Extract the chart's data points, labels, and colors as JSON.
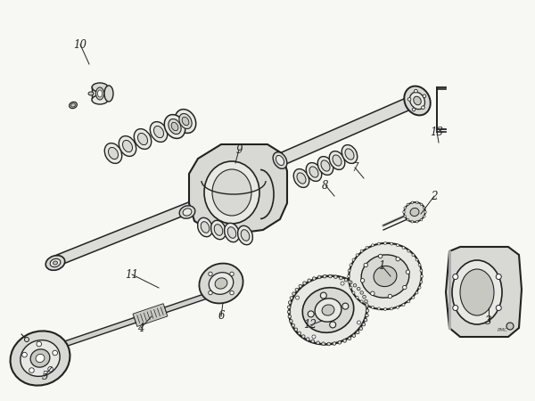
{
  "bg_color": "#f7f7f3",
  "line_color": "#222222",
  "fill_light": "#e8e8e4",
  "fill_mid": "#d8d8d4",
  "fill_dark": "#c8c8c2",
  "axle_tube_fill": "#dcdcd8",
  "label_positions": {
    "1": [
      425,
      298,
      440,
      308
    ],
    "2": [
      488,
      218,
      475,
      238
    ],
    "3": [
      548,
      358,
      548,
      342
    ],
    "4": [
      155,
      368,
      168,
      352
    ],
    "5": [
      52,
      418,
      60,
      408
    ],
    "6": [
      248,
      355,
      250,
      338
    ],
    "7": [
      400,
      188,
      408,
      198
    ],
    "8": [
      368,
      208,
      375,
      218
    ],
    "9": [
      268,
      168,
      265,
      185
    ],
    "10": [
      90,
      50,
      98,
      72
    ],
    "11": [
      148,
      308,
      178,
      325
    ],
    "12": [
      348,
      365,
      362,
      370
    ],
    "13": [
      490,
      148,
      478,
      158
    ]
  }
}
